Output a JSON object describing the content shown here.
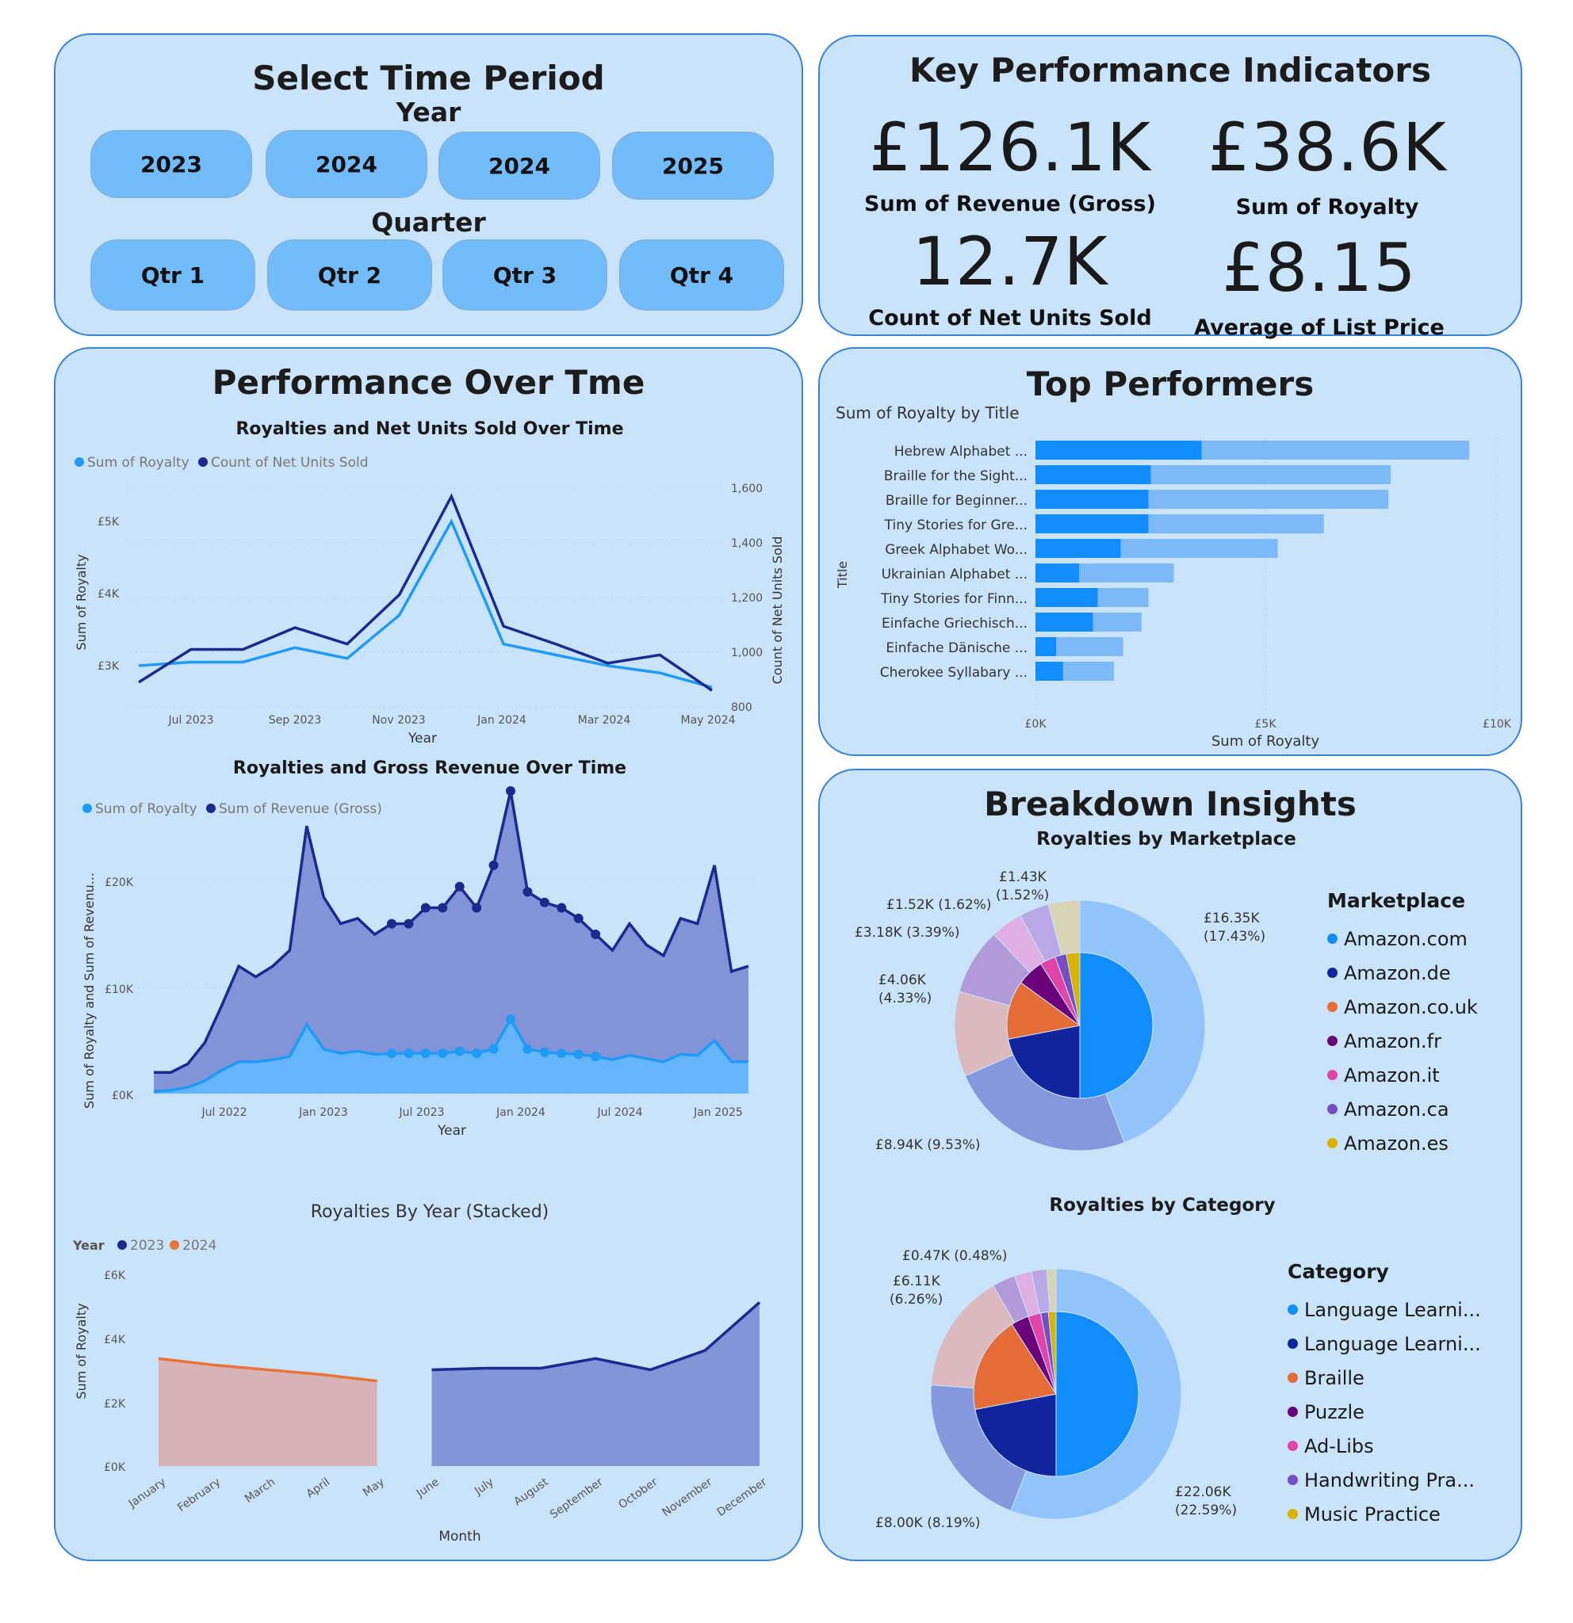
{
  "time_period": {
    "title": "Select Time Period",
    "year_label": "Year",
    "years": [
      "2023",
      "2024",
      "2024",
      "2025"
    ],
    "quarter_label": "Quarter",
    "quarters": [
      "Qtr 1",
      "Qtr 2",
      "Qtr 3",
      "Qtr 4"
    ]
  },
  "kpis": {
    "title": "Key Performance Indicators",
    "items": [
      {
        "value": "£126.1K",
        "label": "Sum of Revenue (Gross)"
      },
      {
        "value": "£38.6K",
        "label": "Sum of Royalty"
      },
      {
        "value": "12.7K",
        "label": "Count of Net Units Sold"
      },
      {
        "value": "£8.15",
        "label": "Average of List Price"
      }
    ]
  },
  "performance": {
    "title": "Performance Over Tme",
    "chart1": {
      "title": "Royalties and Net Units Sold Over Time",
      "legend": [
        "Sum of Royalty",
        "Count of Net Units Sold"
      ],
      "ylabel_left": "Sum of Royalty",
      "ylabel_right": "Count of Net Units Sold",
      "xlabel": "Year",
      "y_ticks_left": [
        "£3K",
        "£4K",
        "£5K"
      ],
      "y_ticks_right": [
        "800",
        "1,000",
        "1,200",
        "1,400",
        "1,600"
      ],
      "x_ticks": [
        "Jul 2023",
        "Sep 2023",
        "Nov 2023",
        "Jan 2024",
        "Mar 2024",
        "May 2024"
      ]
    },
    "chart2": {
      "title": "Royalties and Gross Revenue Over Time",
      "legend": [
        "Sum of Royalty",
        "Sum of Revenue (Gross)"
      ],
      "ylabel": "Sum of Royalty and Sum of Revenu...",
      "xlabel": "Year",
      "y_ticks": [
        "£0K",
        "£10K",
        "£20K"
      ],
      "x_ticks": [
        "Jul 2022",
        "Jan 2023",
        "Jul 2023",
        "Jan 2024",
        "Jul 2024",
        "Jan 2025"
      ]
    },
    "chart3": {
      "title": "Royalties By Year (Stacked)",
      "legend_title": "Year",
      "legend": [
        "2023",
        "2024"
      ],
      "ylabel": "Sum of Royalty",
      "xlabel": "Month",
      "y_ticks": [
        "£0K",
        "£2K",
        "£4K",
        "£6K"
      ],
      "x_ticks": [
        "January",
        "February",
        "March",
        "April",
        "May",
        "June",
        "July",
        "August",
        "September",
        "October",
        "November",
        "December"
      ]
    }
  },
  "top_performers": {
    "title": "Top Performers",
    "chart_title": "Sum of Royalty by Title",
    "ylabel": "Title",
    "xlabel": "Sum of Royalty",
    "x_ticks": [
      "£0K",
      "£5K",
      "£10K"
    ]
  },
  "breakdown": {
    "title": "Breakdown Insights",
    "marketplace": {
      "title": "Royalties by Marketplace",
      "legend_title": "Marketplace",
      "legend": [
        "Amazon.com",
        "Amazon.de",
        "Amazon.co.uk",
        "Amazon.fr",
        "Amazon.it",
        "Amazon.ca",
        "Amazon.es"
      ],
      "labels": [
        {
          "line1": "£16.35K",
          "line2": "(17.43%)"
        },
        {
          "line1": "£8.94K (9.53%)",
          "line2": ""
        },
        {
          "line1": "£4.06K",
          "line2": "(4.33%)"
        },
        {
          "line1": "£3.18K (3.39%)",
          "line2": ""
        },
        {
          "line1": "£1.52K (1.62%)",
          "line2": ""
        },
        {
          "line1": "£1.43K",
          "line2": "(1.52%)"
        }
      ]
    },
    "category": {
      "title": "Royalties by Category",
      "legend_title": "Category",
      "legend": [
        "Language Learni...",
        "Language Learni...",
        "Braille",
        "Puzzle",
        "Ad-Libs",
        "Handwriting Pra...",
        "Music Practice"
      ],
      "labels": [
        {
          "line1": "£22.06K",
          "line2": "(22.59%)"
        },
        {
          "line1": "£8.00K (8.19%)",
          "line2": ""
        },
        {
          "line1": "£6.11K",
          "line2": "(6.26%)"
        },
        {
          "line1": "£0.47K (0.48%)",
          "line2": ""
        }
      ]
    }
  },
  "chart_data": [
    {
      "type": "line",
      "title": "Royalties and Net Units Sold Over Time",
      "x": [
        "2023-06",
        "2023-07",
        "2023-08",
        "2023-09",
        "2023-10",
        "2023-11",
        "2023-12",
        "2024-01",
        "2024-02",
        "2024-03",
        "2024-04",
        "2024-05"
      ],
      "series": [
        {
          "name": "Sum of Royalty",
          "axis": "left",
          "values": [
            3000,
            3050,
            3050,
            3250,
            3100,
            3700,
            5000,
            3300,
            3150,
            3000,
            2900,
            2700
          ]
        },
        {
          "name": "Count of Net Units Sold",
          "axis": "right",
          "values": [
            890,
            1010,
            1010,
            1090,
            1030,
            1210,
            1570,
            1095,
            1030,
            960,
            990,
            860
          ]
        }
      ],
      "xlabel": "Year",
      "ylabel": "Sum of Royalty",
      "ylabel_right": "Count of Net Units Sold",
      "ylim": [
        2600,
        5400
      ],
      "ylim_right": [
        800,
        1600
      ],
      "grid": true,
      "legend": "top-left"
    },
    {
      "type": "area",
      "title": "Royalties and Gross Revenue Over Time",
      "x": [
        "2022-04",
        "2022-05",
        "2022-06",
        "2022-07",
        "2022-08",
        "2022-09",
        "2022-10",
        "2022-11",
        "2022-12",
        "2023-01",
        "2023-02",
        "2023-03",
        "2023-04",
        "2023-05",
        "2023-06",
        "2023-07",
        "2023-08",
        "2023-09",
        "2023-10",
        "2023-11",
        "2023-12",
        "2024-01",
        "2024-02",
        "2024-03",
        "2024-04",
        "2024-05",
        "2024-06",
        "2024-07",
        "2024-08",
        "2024-09",
        "2024-10",
        "2024-11",
        "2024-12",
        "2025-01",
        "2025-02",
        "2025-03"
      ],
      "series": [
        {
          "name": "Sum of Revenue (Gross)",
          "values": [
            2000,
            2000,
            2800,
            4800,
            8300,
            12000,
            11000,
            12000,
            13500,
            25200,
            18500,
            16000,
            16500,
            15000,
            16000,
            16000,
            17500,
            17500,
            19500,
            17500,
            21500,
            28500,
            19000,
            18000,
            17500,
            16500,
            15000,
            13500,
            16000,
            14000,
            13000,
            16500,
            16000,
            21500,
            11500,
            12000
          ]
        },
        {
          "name": "Sum of Royalty",
          "values": [
            200,
            300,
            600,
            1200,
            2200,
            3000,
            3000,
            3200,
            3500,
            6500,
            4200,
            3800,
            4000,
            3700,
            3800,
            3800,
            3800,
            3800,
            4000,
            3800,
            4200,
            7000,
            4200,
            3900,
            3800,
            3700,
            3500,
            3200,
            3600,
            3300,
            3000,
            3700,
            3600,
            5000,
            3000,
            3000
          ]
        }
      ],
      "xlabel": "Year",
      "ylabel": "Sum of Royalty and Sum of Revenu...",
      "ylim": [
        0,
        30000
      ],
      "grid": true,
      "legend": "top-left"
    },
    {
      "type": "area",
      "title": "Royalties By Year (Stacked)",
      "categories": [
        "January",
        "February",
        "March",
        "April",
        "May",
        "June",
        "July",
        "August",
        "September",
        "October",
        "November",
        "December"
      ],
      "series": [
        {
          "name": "2024",
          "values": [
            3350,
            3150,
            3000,
            2850,
            2650,
            null,
            null,
            null,
            null,
            null,
            null,
            null
          ]
        },
        {
          "name": "2023",
          "values": [
            null,
            null,
            null,
            null,
            null,
            3000,
            3050,
            3050,
            3350,
            3000,
            3600,
            5100
          ]
        }
      ],
      "xlabel": "Month",
      "ylabel": "Sum of Royalty",
      "ylim": [
        0,
        6000
      ],
      "legend": "top-left"
    },
    {
      "type": "bar",
      "orientation": "horizontal",
      "title": "Sum of Royalty by Title",
      "categories": [
        "Hebrew Alphabet ...",
        "Braille for the Sight...",
        "Braille for Beginner...",
        "Tiny Stories for Gre...",
        "Greek Alphabet Wo...",
        "Ukrainian Alphabet ...",
        "Tiny Stories for Finn...",
        "Einfache Griechisch...",
        "Einfache Dänische ...",
        "Cherokee Syllabary ..."
      ],
      "series": [
        {
          "name": "segment-1",
          "values": [
            3600,
            2500,
            2450,
            2450,
            1850,
            950,
            1350,
            1250,
            450,
            600
          ]
        },
        {
          "name": "segment-2",
          "values": [
            5800,
            5200,
            5200,
            3800,
            3400,
            2050,
            1100,
            1050,
            1450,
            1100
          ]
        }
      ],
      "xlabel": "Sum of Royalty",
      "ylabel": "Title",
      "xlim": [
        0,
        10000
      ],
      "grid": true
    },
    {
      "type": "pie",
      "title": "Royalties by Marketplace",
      "inner": {
        "labels": [
          "Amazon.com",
          "Amazon.de",
          "Amazon.co.uk",
          "Amazon.fr",
          "Amazon.it",
          "Amazon.ca",
          "Amazon.es"
        ],
        "values": [
          50,
          22,
          13,
          6,
          3.5,
          2.5,
          3
        ]
      },
      "outer_values": [
        17.43,
        9.53,
        4.33,
        3.39,
        1.62,
        1.52,
        1.6
      ],
      "legend": "right"
    },
    {
      "type": "pie",
      "title": "Royalties by Category",
      "inner": {
        "labels": [
          "Language Learni...",
          "Language Learni...",
          "Braille",
          "Puzzle",
          "Ad-Libs",
          "Handwriting Pra...",
          "Music Practice"
        ],
        "values": [
          50,
          22,
          19,
          3.5,
          2.5,
          1.5,
          1.5
        ]
      },
      "outer_values": [
        22.59,
        8.19,
        6.26,
        1.2,
        0.9,
        0.8,
        0.48
      ],
      "legend": "right"
    }
  ]
}
